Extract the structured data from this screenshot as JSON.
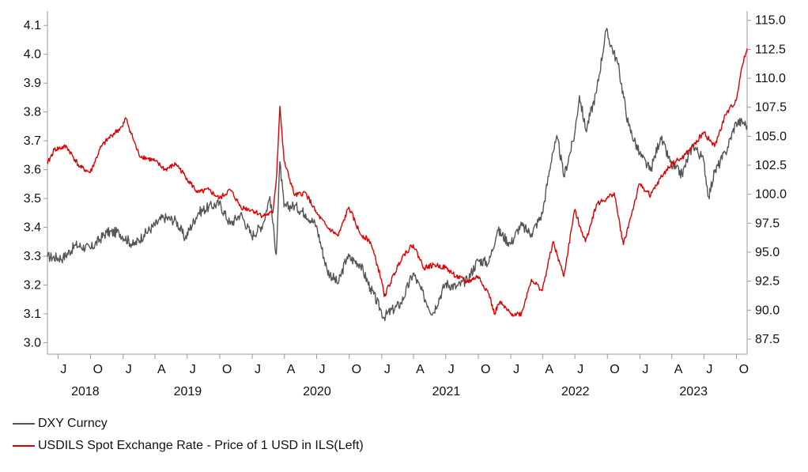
{
  "chart_data": {
    "type": "line",
    "x_axis": {
      "month_ticks": [
        "J",
        "O",
        "J",
        "A",
        "J",
        "O",
        "J",
        "A",
        "J",
        "O",
        "J",
        "A",
        "J",
        "O",
        "J",
        "A",
        "J",
        "O",
        "J",
        "A",
        "J",
        "O"
      ],
      "year_labels": [
        "2018",
        "2019",
        "2020",
        "2021",
        "2022",
        "2023"
      ],
      "range": [
        "2018-06-01",
        "2023-10-31"
      ]
    },
    "y_left": {
      "ticks": [
        "3.0",
        "3.1",
        "3.2",
        "3.3",
        "3.4",
        "3.5",
        "3.6",
        "3.7",
        "3.8",
        "3.9",
        "4.0",
        "4.1"
      ],
      "ylim": [
        2.96,
        4.15
      ]
    },
    "y_right": {
      "ticks": [
        "87.5",
        "90.0",
        "92.5",
        "95.0",
        "97.5",
        "100.0",
        "102.5",
        "105.0",
        "107.5",
        "110.0",
        "112.5",
        "115.0"
      ],
      "ylim": [
        86.2,
        115.8
      ]
    },
    "grid": false,
    "legend_position": "bottom-left",
    "series": [
      {
        "name": "DXY Curncy",
        "axis": "right",
        "color": "#555555",
        "points": [
          [
            "2018-06-01",
            94.6
          ],
          [
            "2018-07-15",
            94.5
          ],
          [
            "2018-08-20",
            95.6
          ],
          [
            "2018-10-01",
            95.3
          ],
          [
            "2018-11-15",
            96.7
          ],
          [
            "2018-12-20",
            96.7
          ],
          [
            "2019-01-31",
            95.6
          ],
          [
            "2019-03-01",
            96.5
          ],
          [
            "2019-04-25",
            98.0
          ],
          [
            "2019-05-31",
            97.7
          ],
          [
            "2019-06-25",
            96.2
          ],
          [
            "2019-08-01",
            98.4
          ],
          [
            "2019-08-31",
            98.9
          ],
          [
            "2019-09-30",
            99.2
          ],
          [
            "2019-10-31",
            97.4
          ],
          [
            "2019-11-29",
            98.3
          ],
          [
            "2019-12-31",
            96.4
          ],
          [
            "2020-01-31",
            97.4
          ],
          [
            "2020-02-20",
            99.8
          ],
          [
            "2020-03-09",
            94.8
          ],
          [
            "2020-03-19",
            102.8
          ],
          [
            "2020-03-31",
            98.9
          ],
          [
            "2020-04-30",
            99.0
          ],
          [
            "2020-05-31",
            98.3
          ],
          [
            "2020-06-30",
            97.3
          ],
          [
            "2020-07-31",
            93.4
          ],
          [
            "2020-08-31",
            92.3
          ],
          [
            "2020-09-25",
            94.6
          ],
          [
            "2020-10-31",
            94.0
          ],
          [
            "2020-11-30",
            91.9
          ],
          [
            "2020-12-31",
            89.9
          ],
          [
            "2021-01-06",
            89.4
          ],
          [
            "2021-02-25",
            90.6
          ],
          [
            "2021-03-31",
            93.2
          ],
          [
            "2021-04-30",
            91.2
          ],
          [
            "2021-05-25",
            89.7
          ],
          [
            "2021-06-30",
            92.3
          ],
          [
            "2021-07-31",
            92.0
          ],
          [
            "2021-08-31",
            92.6
          ],
          [
            "2021-09-30",
            94.3
          ],
          [
            "2021-10-31",
            94.1
          ],
          [
            "2021-11-24",
            96.9
          ],
          [
            "2021-12-31",
            95.7
          ],
          [
            "2022-01-28",
            97.3
          ],
          [
            "2022-02-28",
            96.6
          ],
          [
            "2022-03-31",
            98.3
          ],
          [
            "2022-04-28",
            103.5
          ],
          [
            "2022-05-13",
            104.8
          ],
          [
            "2022-05-31",
            101.5
          ],
          [
            "2022-06-30",
            105.1
          ],
          [
            "2022-07-14",
            108.5
          ],
          [
            "2022-08-01",
            105.5
          ],
          [
            "2022-08-31",
            108.8
          ],
          [
            "2022-09-27",
            114.1
          ],
          [
            "2022-10-31",
            111.2
          ],
          [
            "2022-11-30",
            105.9
          ],
          [
            "2022-12-31",
            103.5
          ],
          [
            "2023-01-31",
            102.0
          ],
          [
            "2023-02-28",
            104.9
          ],
          [
            "2023-03-31",
            102.5
          ],
          [
            "2023-04-30",
            101.7
          ],
          [
            "2023-05-31",
            104.3
          ],
          [
            "2023-06-30",
            102.9
          ],
          [
            "2023-07-14",
            99.8
          ],
          [
            "2023-07-31",
            101.9
          ],
          [
            "2023-08-31",
            103.6
          ],
          [
            "2023-09-30",
            106.2
          ],
          [
            "2023-10-20",
            106.2
          ],
          [
            "2023-10-31",
            105.9
          ]
        ]
      },
      {
        "name": "USDILS Spot Exchange Rate - Price of 1 USD in ILS(Left)",
        "axis": "left",
        "color": "#e00000",
        "points": [
          [
            "2018-06-01",
            3.62
          ],
          [
            "2018-06-20",
            3.67
          ],
          [
            "2018-07-25",
            3.68
          ],
          [
            "2018-08-31",
            3.61
          ],
          [
            "2018-09-30",
            3.59
          ],
          [
            "2018-10-31",
            3.68
          ],
          [
            "2018-11-30",
            3.72
          ],
          [
            "2018-12-31",
            3.75
          ],
          [
            "2019-01-08",
            3.78
          ],
          [
            "2019-02-15",
            3.65
          ],
          [
            "2019-03-31",
            3.63
          ],
          [
            "2019-04-30",
            3.6
          ],
          [
            "2019-05-31",
            3.62
          ],
          [
            "2019-06-30",
            3.57
          ],
          [
            "2019-07-31",
            3.52
          ],
          [
            "2019-08-31",
            3.53
          ],
          [
            "2019-09-30",
            3.5
          ],
          [
            "2019-10-31",
            3.53
          ],
          [
            "2019-11-30",
            3.47
          ],
          [
            "2019-12-31",
            3.46
          ],
          [
            "2020-01-31",
            3.44
          ],
          [
            "2020-02-28",
            3.45
          ],
          [
            "2020-03-10",
            3.58
          ],
          [
            "2020-03-19",
            3.82
          ],
          [
            "2020-03-31",
            3.63
          ],
          [
            "2020-04-30",
            3.51
          ],
          [
            "2020-05-31",
            3.52
          ],
          [
            "2020-06-30",
            3.45
          ],
          [
            "2020-07-31",
            3.4
          ],
          [
            "2020-08-31",
            3.37
          ],
          [
            "2020-09-30",
            3.47
          ],
          [
            "2020-10-31",
            3.38
          ],
          [
            "2020-11-30",
            3.35
          ],
          [
            "2020-12-31",
            3.22
          ],
          [
            "2021-01-08",
            3.16
          ],
          [
            "2021-02-28",
            3.3
          ],
          [
            "2021-03-31",
            3.34
          ],
          [
            "2021-04-30",
            3.26
          ],
          [
            "2021-05-31",
            3.27
          ],
          [
            "2021-06-30",
            3.26
          ],
          [
            "2021-07-31",
            3.23
          ],
          [
            "2021-08-31",
            3.21
          ],
          [
            "2021-09-30",
            3.23
          ],
          [
            "2021-10-31",
            3.17
          ],
          [
            "2021-11-15",
            3.1
          ],
          [
            "2021-11-30",
            3.14
          ],
          [
            "2021-12-31",
            3.1
          ],
          [
            "2022-01-31",
            3.1
          ],
          [
            "2022-02-28",
            3.22
          ],
          [
            "2022-03-31",
            3.18
          ],
          [
            "2022-04-30",
            3.35
          ],
          [
            "2022-05-31",
            3.23
          ],
          [
            "2022-06-30",
            3.46
          ],
          [
            "2022-07-31",
            3.35
          ],
          [
            "2022-08-31",
            3.48
          ],
          [
            "2022-09-30",
            3.5
          ],
          [
            "2022-10-20",
            3.52
          ],
          [
            "2022-11-15",
            3.34
          ],
          [
            "2022-12-31",
            3.55
          ],
          [
            "2023-01-31",
            3.51
          ],
          [
            "2023-02-28",
            3.57
          ],
          [
            "2023-03-31",
            3.62
          ],
          [
            "2023-04-30",
            3.64
          ],
          [
            "2023-05-31",
            3.68
          ],
          [
            "2023-06-30",
            3.73
          ],
          [
            "2023-07-31",
            3.68
          ],
          [
            "2023-08-31",
            3.79
          ],
          [
            "2023-09-30",
            3.84
          ],
          [
            "2023-10-15",
            3.95
          ],
          [
            "2023-10-31",
            4.02
          ]
        ]
      }
    ]
  },
  "legend": {
    "items": [
      {
        "label": "DXY Curncy",
        "color": "#555555"
      },
      {
        "label": "USDILS Spot Exchange Rate - Price of 1 USD in ILS(Left)",
        "color": "#e00000"
      }
    ]
  }
}
